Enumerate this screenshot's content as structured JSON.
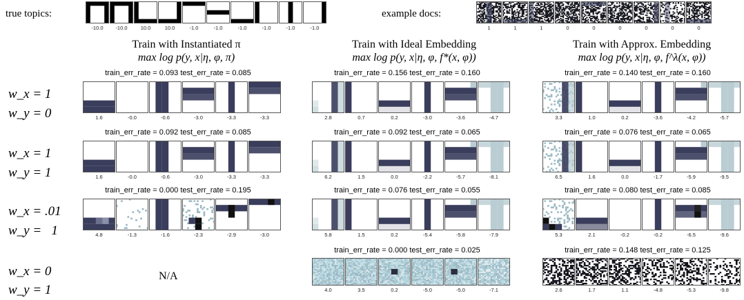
{
  "header": {
    "true_topics_label": "true topics:",
    "example_docs_label": "example docs:",
    "true_topic_weights": [
      "-10.0",
      "-10.0",
      "10.0",
      "10.0",
      "-1.0",
      "-1.0",
      "-1.0",
      "-1.0",
      "-1.0",
      "-1.0"
    ],
    "example_doc_labels": [
      "1",
      "1",
      "1",
      "0",
      "0",
      "0",
      "0",
      "0",
      "0"
    ]
  },
  "columns": [
    {
      "title": "Train with Instantiated π",
      "objective": "max log p(y, x|η, φ, π)"
    },
    {
      "title": "Train with Ideal Embedding",
      "objective": "max log p(y, x|η, φ, f*(x, φ))"
    },
    {
      "title": "Train with Approx. Embedding",
      "objective": "max log p(y, x|η, φ, f^λ(x, φ))"
    }
  ],
  "rows": [
    {
      "wx": "w_x = 1",
      "wy": "w_y = 0"
    },
    {
      "wx": "w_x = 1",
      "wy": "w_y = 1"
    },
    {
      "wx": "w_x = .01",
      "wy": "w_y =   1"
    },
    {
      "wx": "w_x = 0",
      "wy": "w_y = 1"
    }
  ],
  "na_text": "N/A",
  "panels": [
    [
      {
        "err": "train_err_rate = 0.093  test_err_rate = 0.085",
        "labels": [
          "1.6",
          "-0.0",
          "-0.6",
          "-3.0",
          "-3.3",
          "-3.3"
        ]
      },
      {
        "err": "train_err_rate = 0.156  test_err_rate = 0.160",
        "labels": [
          "2.8",
          "0.7",
          "0.2",
          "-3.0",
          "-3.6",
          "-4.7"
        ]
      },
      {
        "err": "train_err_rate = 0.140  test_err_rate = 0.160",
        "labels": [
          "3.3",
          "1.0",
          "0.2",
          "-3.6",
          "-4.2",
          "-5.7"
        ]
      }
    ],
    [
      {
        "err": "train_err_rate = 0.092  test_err_rate = 0.085",
        "labels": [
          "1.6",
          "-0.0",
          "-0.6",
          "-3.0",
          "-3.3",
          "-3.3"
        ]
      },
      {
        "err": "train_err_rate = 0.092  test_err_rate = 0.065",
        "labels": [
          "6.2",
          "1.5",
          "0.0",
          "-2.2",
          "-5.7",
          "-8.1"
        ]
      },
      {
        "err": "train_err_rate = 0.076  test_err_rate = 0.065",
        "labels": [
          "6.5",
          "1.6",
          "0.0",
          "-1.7",
          "-5.9",
          "-9.5"
        ]
      }
    ],
    [
      {
        "err": "train_err_rate = 0.000  test_err_rate = 0.195",
        "labels": [
          "4.8",
          "-1.3",
          "-1.6",
          "-2.3",
          "-2.9",
          "-3.0"
        ]
      },
      {
        "err": "train_err_rate = 0.076  test_err_rate = 0.055",
        "labels": [
          "5.8",
          "1.5",
          "0.2",
          "-5.4",
          "-5.8",
          "-7.9"
        ]
      },
      {
        "err": "train_err_rate = 0.080  test_err_rate = 0.085",
        "labels": [
          "5.3",
          "2.1",
          "-0.2",
          "-0.2",
          "-6.5",
          "-9.6"
        ]
      }
    ],
    [
      null,
      {
        "err": "train_err_rate = 0.000  test_err_rate = 0.025",
        "labels": [
          "4.0",
          "3.5",
          "0.2",
          "-5.0",
          "-5.0",
          "-7.1"
        ]
      },
      {
        "err": "train_err_rate = 0.148  test_err_rate = 0.125",
        "labels": [
          "2.6",
          "1.7",
          "1.1",
          "-4.8",
          "-5.3",
          "-9.8"
        ]
      }
    ]
  ],
  "colors": {
    "topic_dark": "#3a3d5c",
    "topic_light": "#b9cdd3",
    "frame": "#555555"
  }
}
